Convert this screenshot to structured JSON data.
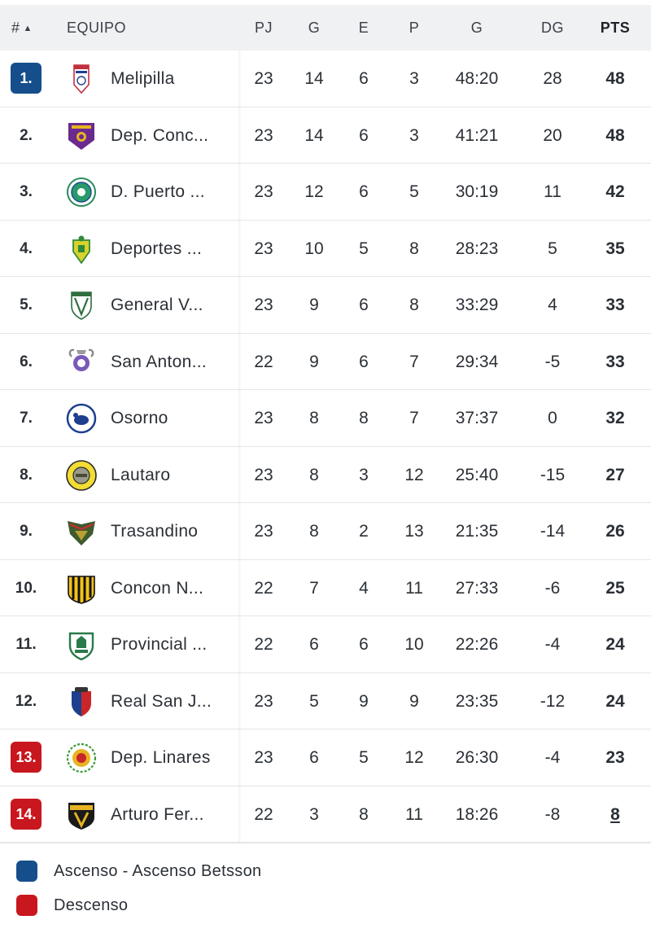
{
  "colors": {
    "promotion": "#164e8c",
    "relegation": "#c8171e",
    "header_bg": "#f0f1f3"
  },
  "header": {
    "rank": "#",
    "team": "EQUIPO",
    "pj": "PJ",
    "g": "G",
    "e": "E",
    "p": "P",
    "goals": "G",
    "dg": "DG",
    "pts": "PTS"
  },
  "rows": [
    {
      "rank": "1.",
      "zone": "promotion",
      "team": "Melipilla",
      "logo": "melipilla-crest-icon",
      "pj": "23",
      "g": "14",
      "e": "6",
      "p": "3",
      "goals": "48:20",
      "dg": "28",
      "pts": "48"
    },
    {
      "rank": "2.",
      "zone": "",
      "team": "Dep. Conc...",
      "logo": "concepcion-crest-icon",
      "pj": "23",
      "g": "14",
      "e": "6",
      "p": "3",
      "goals": "41:21",
      "dg": "20",
      "pts": "48"
    },
    {
      "rank": "3.",
      "zone": "",
      "team": "D. Puerto ...",
      "logo": "puerto-montt-crest-icon",
      "pj": "23",
      "g": "12",
      "e": "6",
      "p": "5",
      "goals": "30:19",
      "dg": "11",
      "pts": "42"
    },
    {
      "rank": "4.",
      "zone": "",
      "team": "Deportes ...",
      "logo": "deportes-crest-icon",
      "pj": "23",
      "g": "10",
      "e": "5",
      "p": "8",
      "goals": "28:23",
      "dg": "5",
      "pts": "35"
    },
    {
      "rank": "5.",
      "zone": "",
      "team": "General V...",
      "logo": "general-velasquez-crest-icon",
      "pj": "23",
      "g": "9",
      "e": "6",
      "p": "8",
      "goals": "33:29",
      "dg": "4",
      "pts": "33"
    },
    {
      "rank": "6.",
      "zone": "",
      "team": "San Anton...",
      "logo": "san-antonio-crest-icon",
      "pj": "22",
      "g": "9",
      "e": "6",
      "p": "7",
      "goals": "29:34",
      "dg": "-5",
      "pts": "33"
    },
    {
      "rank": "7.",
      "zone": "",
      "team": "Osorno",
      "logo": "osorno-crest-icon",
      "pj": "23",
      "g": "8",
      "e": "8",
      "p": "7",
      "goals": "37:37",
      "dg": "0",
      "pts": "32"
    },
    {
      "rank": "8.",
      "zone": "",
      "team": "Lautaro",
      "logo": "lautaro-crest-icon",
      "pj": "23",
      "g": "8",
      "e": "3",
      "p": "12",
      "goals": "25:40",
      "dg": "-15",
      "pts": "27"
    },
    {
      "rank": "9.",
      "zone": "",
      "team": "Trasandino",
      "logo": "trasandino-crest-icon",
      "pj": "23",
      "g": "8",
      "e": "2",
      "p": "13",
      "goals": "21:35",
      "dg": "-14",
      "pts": "26"
    },
    {
      "rank": "10.",
      "zone": "",
      "team": "Concon N...",
      "logo": "concon-crest-icon",
      "pj": "22",
      "g": "7",
      "e": "4",
      "p": "11",
      "goals": "27:33",
      "dg": "-6",
      "pts": "25"
    },
    {
      "rank": "11.",
      "zone": "",
      "team": "Provincial ...",
      "logo": "provincial-crest-icon",
      "pj": "22",
      "g": "6",
      "e": "6",
      "p": "10",
      "goals": "22:26",
      "dg": "-4",
      "pts": "24"
    },
    {
      "rank": "12.",
      "zone": "",
      "team": "Real San J...",
      "logo": "real-san-joaquin-crest-icon",
      "pj": "23",
      "g": "5",
      "e": "9",
      "p": "9",
      "goals": "23:35",
      "dg": "-12",
      "pts": "24"
    },
    {
      "rank": "13.",
      "zone": "relegation",
      "team": "Dep. Linares",
      "logo": "linares-crest-icon",
      "pj": "23",
      "g": "6",
      "e": "5",
      "p": "12",
      "goals": "26:30",
      "dg": "-4",
      "pts": "23"
    },
    {
      "rank": "14.",
      "zone": "relegation",
      "team": "Arturo Fer...",
      "logo": "arturo-fernandez-crest-icon",
      "pj": "22",
      "g": "3",
      "e": "8",
      "p": "11",
      "goals": "18:26",
      "dg": "-8",
      "pts": "8",
      "pts_underlined": true
    }
  ],
  "legend": [
    {
      "label": "Ascenso - Ascenso Betsson",
      "zone": "promotion"
    },
    {
      "label": "Descenso",
      "zone": "relegation"
    }
  ]
}
